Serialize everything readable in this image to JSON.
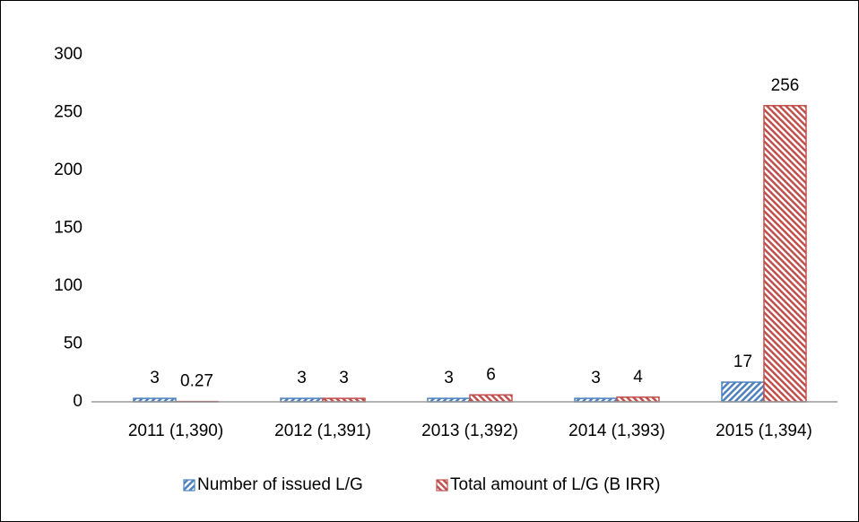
{
  "chart_data": {
    "type": "bar",
    "categories": [
      "2011 (1,390)",
      "2012 (1,391)",
      "2013 (1,392)",
      "2014 (1,393)",
      "2015 (1,394)"
    ],
    "series": [
      {
        "name": "Number of issued L/G",
        "color": "#4f81bd",
        "values": [
          3,
          3,
          3,
          3,
          17
        ]
      },
      {
        "name": "Total amount of L/G (B IRR)",
        "color": "#c0504d",
        "values": [
          0.27,
          3,
          6,
          4,
          256
        ]
      }
    ],
    "ylim": [
      0,
      300
    ],
    "yticks": [
      0,
      50,
      100,
      150,
      200,
      250,
      300
    ],
    "grid": false,
    "legend": "bottom"
  }
}
